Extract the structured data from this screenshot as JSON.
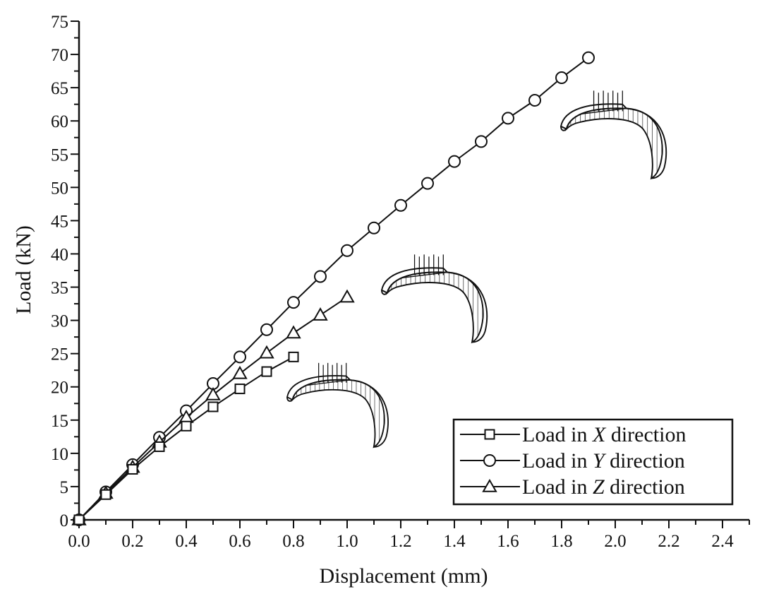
{
  "chart_data": {
    "type": "line",
    "xlabel": "Displacement (mm)",
    "ylabel": "Load (kN)",
    "xlim": [
      0,
      2.5
    ],
    "ylim": [
      0,
      75
    ],
    "x_ticks": [
      "0.0",
      "0.2",
      "0.4",
      "0.6",
      "0.8",
      "1.0",
      "1.2",
      "1.4",
      "1.6",
      "1.8",
      "2.0",
      "2.2",
      "2.4"
    ],
    "y_ticks": [
      "0",
      "5",
      "10",
      "15",
      "20",
      "25",
      "30",
      "35",
      "40",
      "45",
      "50",
      "55",
      "60",
      "65",
      "70",
      "75"
    ],
    "grid": false,
    "legend_position": "bottom-right",
    "series": [
      {
        "name": "Load in X direction",
        "label_prefix": "Load in ",
        "label_var": "X",
        "label_suffix": " direction",
        "marker": "square",
        "color": "#111111",
        "x": [
          0,
          0.1,
          0.2,
          0.3,
          0.4,
          0.5,
          0.6,
          0.7,
          0.8
        ],
        "y": [
          0,
          3.8,
          7.6,
          11.0,
          14.1,
          17.0,
          19.7,
          22.3,
          24.5
        ]
      },
      {
        "name": "Load in Y direction",
        "label_prefix": "Load in ",
        "label_var": "Y",
        "label_suffix": " direction",
        "marker": "circle",
        "color": "#111111",
        "x": [
          0,
          0.1,
          0.2,
          0.3,
          0.4,
          0.5,
          0.6,
          0.7,
          0.8,
          0.9,
          1.0,
          1.1,
          1.2,
          1.3,
          1.4,
          1.5,
          1.6,
          1.7,
          1.8,
          1.9
        ],
        "y": [
          0,
          4.2,
          8.3,
          12.4,
          16.4,
          20.5,
          24.5,
          28.6,
          32.7,
          36.6,
          40.5,
          43.9,
          47.3,
          50.6,
          53.9,
          56.9,
          60.4,
          63.1,
          66.5,
          69.5
        ]
      },
      {
        "name": "Load in Z direction",
        "label_prefix": "Load in ",
        "label_var": "Z",
        "label_suffix": " direction",
        "marker": "triangle",
        "color": "#111111",
        "x": [
          0,
          0.1,
          0.2,
          0.3,
          0.4,
          0.5,
          0.6,
          0.7,
          0.8,
          0.9,
          1.0
        ],
        "y": [
          0,
          4.0,
          7.9,
          11.7,
          15.4,
          18.8,
          22.0,
          25.1,
          28.1,
          30.8,
          33.5
        ]
      }
    ],
    "illustrations": [
      {
        "name": "shell-model-x-load-icon",
        "anchor_x": 0.8,
        "anchor_y": 17
      },
      {
        "name": "shell-model-z-load-icon",
        "anchor_x": 1.13,
        "anchor_y": 34
      },
      {
        "name": "shell-model-y-load-icon",
        "anchor_x": 1.8,
        "anchor_y": 58
      }
    ]
  }
}
